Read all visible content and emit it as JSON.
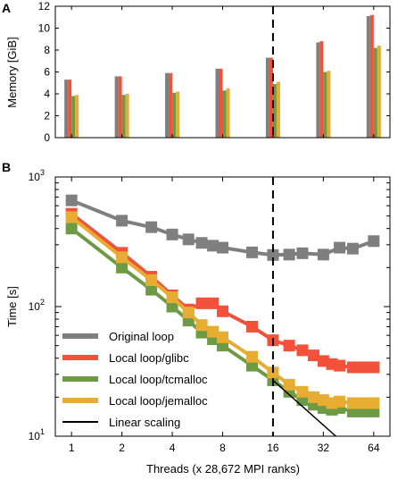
{
  "colors": {
    "original": "#7f7f7f",
    "glibc": "#f4513a",
    "tcmalloc": "#6e9a45",
    "jemalloc": "#e6ad32",
    "linear": "#000000",
    "axis": "#000000"
  },
  "chart_data": [
    {
      "panel_label": "A",
      "type": "bar",
      "ylabel": "Memory [GiB]",
      "ylim": [
        0,
        12
      ],
      "yticks": [
        "0",
        "2",
        "4",
        "6",
        "8",
        "10",
        "12"
      ],
      "categories": [
        "1",
        "2",
        "4",
        "8",
        "16",
        "32",
        "64"
      ],
      "x_scale": "log2",
      "vertical_dashed_line_at": "16",
      "series": [
        {
          "key": "original",
          "values": [
            5.3,
            5.6,
            5.9,
            6.3,
            7.3,
            8.7,
            11.1
          ]
        },
        {
          "key": "glibc",
          "values": [
            5.3,
            5.6,
            5.9,
            6.3,
            7.3,
            8.8,
            11.2
          ]
        },
        {
          "key": "tcmalloc",
          "values": [
            3.8,
            3.9,
            4.1,
            4.3,
            4.9,
            6.0,
            8.2
          ]
        },
        {
          "key": "jemalloc",
          "values": [
            3.9,
            4.0,
            4.2,
            4.5,
            5.1,
            6.1,
            8.4
          ]
        }
      ]
    },
    {
      "panel_label": "B",
      "type": "line",
      "xlabel": "Threads (x 28,672 MPI ranks)",
      "ylabel": "Time [s]",
      "x_scale": "log2",
      "y_scale": "log10",
      "xlim": [
        0.8,
        80
      ],
      "ylim": [
        10,
        1000
      ],
      "xticks": [
        "1",
        "2",
        "4",
        "8",
        "16",
        "32",
        "64"
      ],
      "yticks": [
        {
          "base": "10",
          "exp": "1"
        },
        {
          "base": "10",
          "exp": "2"
        },
        {
          "base": "10",
          "exp": "3"
        }
      ],
      "vertical_dashed_line_at": 16,
      "legend_position": "lower-left",
      "series": [
        {
          "key": "original",
          "name": "Original loop",
          "marker": "square",
          "x": [
            1,
            2,
            3,
            4,
            5,
            6,
            7,
            8,
            12,
            16,
            20,
            24,
            32,
            40,
            48,
            64
          ],
          "y": [
            660,
            460,
            410,
            360,
            330,
            310,
            295,
            285,
            262,
            250,
            252,
            258,
            252,
            285,
            280,
            320
          ]
        },
        {
          "key": "glibc",
          "name": "Local loop/glibc",
          "marker": "square",
          "x": [
            1,
            2,
            3,
            4,
            5,
            6,
            7,
            8,
            12,
            16,
            20,
            24,
            28,
            32,
            36,
            40,
            48,
            56,
            64
          ],
          "y": [
            520,
            260,
            170,
            122,
            95,
            106,
            106,
            92,
            70,
            55,
            50,
            46,
            42,
            38,
            36,
            35,
            34,
            34,
            34
          ]
        },
        {
          "key": "tcmalloc",
          "name": "Local loop/tcmalloc",
          "marker": "square",
          "x": [
            1,
            2,
            3,
            4,
            5,
            6,
            7,
            8,
            12,
            16,
            20,
            24,
            28,
            32,
            36,
            40,
            48,
            56,
            64
          ],
          "y": [
            400,
            200,
            135,
            100,
            78,
            63,
            56,
            50,
            35,
            27,
            22,
            19,
            17.5,
            16.5,
            16,
            16.5,
            15.5,
            15.5,
            15.5
          ]
        },
        {
          "key": "jemalloc",
          "name": "Local loop/jemalloc",
          "marker": "square",
          "x": [
            1,
            2,
            3,
            4,
            5,
            6,
            7,
            8,
            12,
            16,
            20,
            24,
            28,
            32,
            36,
            40,
            48,
            56,
            64
          ],
          "y": [
            490,
            240,
            160,
            118,
            90,
            72,
            64,
            58,
            41,
            31,
            25,
            22,
            20,
            19,
            18,
            18.5,
            18,
            18,
            18
          ]
        },
        {
          "key": "linear",
          "name": "Linear scaling",
          "marker": "none",
          "x": [
            16,
            38
          ],
          "y": [
            27,
            10
          ]
        }
      ]
    }
  ]
}
